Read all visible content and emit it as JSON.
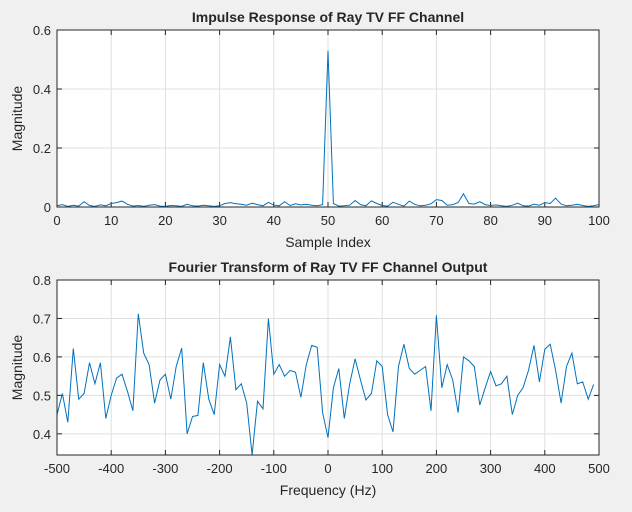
{
  "chart_data": [
    {
      "type": "line",
      "title": "Impulse Response of Ray TV FF Channel",
      "xlabel": "Sample Index",
      "ylabel": "Magnitude",
      "xlim": [
        0,
        100
      ],
      "ylim": [
        0,
        0.6
      ],
      "xticks": [
        "0",
        "10",
        "20",
        "30",
        "40",
        "50",
        "60",
        "70",
        "80",
        "90",
        "100"
      ],
      "yticks": [
        "0",
        "0.2",
        "0.4",
        "0.6"
      ],
      "grid": true,
      "color": "#0072bd",
      "series": [
        {
          "x": [
            0,
            1,
            2,
            3,
            4,
            5,
            6,
            7,
            8,
            9,
            10,
            11,
            12,
            13,
            14,
            15,
            16,
            17,
            18,
            19,
            20,
            21,
            22,
            23,
            24,
            25,
            26,
            27,
            28,
            29,
            30,
            31,
            32,
            33,
            34,
            35,
            36,
            37,
            38,
            39,
            40,
            41,
            42,
            43,
            44,
            45,
            46,
            47,
            48,
            49,
            50,
            51,
            52,
            53,
            54,
            55,
            56,
            57,
            58,
            59,
            60,
            61,
            62,
            63,
            64,
            65,
            66,
            67,
            68,
            69,
            70,
            71,
            72,
            73,
            74,
            75,
            76,
            77,
            78,
            79,
            80,
            81,
            82,
            83,
            84,
            85,
            86,
            87,
            88,
            89,
            90,
            91,
            92,
            93,
            94,
            95,
            96,
            97,
            98,
            99,
            100
          ],
          "y": [
            0.004,
            0.008,
            0.002,
            0.006,
            0.003,
            0.018,
            0.005,
            0.002,
            0.007,
            0.004,
            0.012,
            0.015,
            0.02,
            0.009,
            0.003,
            0.005,
            0.002,
            0.006,
            0.008,
            0.003,
            0.002,
            0.005,
            0.004,
            0.002,
            0.009,
            0.004,
            0.003,
            0.006,
            0.004,
            0.002,
            0.004,
            0.012,
            0.015,
            0.011,
            0.009,
            0.006,
            0.013,
            0.008,
            0.004,
            0.016,
            0.006,
            0.004,
            0.018,
            0.005,
            0.011,
            0.007,
            0.009,
            0.006,
            0.004,
            0.008,
            0.53,
            0.012,
            0.003,
            0.004,
            0.006,
            0.022,
            0.008,
            0.004,
            0.021,
            0.012,
            0.005,
            0.003,
            0.016,
            0.009,
            0.003,
            0.02,
            0.009,
            0.004,
            0.006,
            0.011,
            0.025,
            0.022,
            0.006,
            0.008,
            0.015,
            0.045,
            0.012,
            0.01,
            0.018,
            0.008,
            0.005,
            0.007,
            0.004,
            0.002,
            0.006,
            0.013,
            0.004,
            0.003,
            0.01,
            0.006,
            0.015,
            0.012,
            0.03,
            0.01,
            0.004,
            0.006,
            0.009,
            0.005,
            0.002,
            0.004,
            0.008
          ]
        }
      ]
    },
    {
      "type": "line",
      "title": "Fourier Transform of Ray TV FF Channel Output",
      "xlabel": "Frequency (Hz)",
      "ylabel": "Magnitude",
      "xlim": [
        -500,
        500
      ],
      "ylim": [
        0.345,
        0.8
      ],
      "xticks": [
        "-500",
        "-400",
        "-300",
        "-200",
        "-100",
        "0",
        "100",
        "200",
        "300",
        "400",
        "500"
      ],
      "yticks": [
        "0.4",
        "0.5",
        "0.6",
        "0.7",
        "0.8"
      ],
      "grid": true,
      "color": "#0072bd",
      "series": [
        {
          "x": [
            -500,
            -490,
            -480,
            -470,
            -460,
            -450,
            -440,
            -430,
            -420,
            -410,
            -400,
            -390,
            -380,
            -370,
            -360,
            -350,
            -340,
            -330,
            -320,
            -310,
            -300,
            -290,
            -280,
            -270,
            -260,
            -250,
            -240,
            -230,
            -220,
            -210,
            -200,
            -190,
            -180,
            -170,
            -160,
            -150,
            -140,
            -130,
            -120,
            -110,
            -100,
            -90,
            -80,
            -70,
            -60,
            -50,
            -40,
            -30,
            -20,
            -10,
            0,
            10,
            20,
            30,
            40,
            50,
            60,
            70,
            80,
            90,
            100,
            110,
            120,
            130,
            140,
            150,
            160,
            170,
            180,
            190,
            200,
            210,
            220,
            230,
            240,
            250,
            260,
            270,
            280,
            290,
            300,
            310,
            320,
            330,
            340,
            350,
            360,
            370,
            380,
            390,
            400,
            410,
            420,
            430,
            440,
            450,
            460,
            470,
            480,
            490
          ],
          "y": [
            0.45,
            0.505,
            0.43,
            0.622,
            0.49,
            0.505,
            0.585,
            0.53,
            0.585,
            0.44,
            0.5,
            0.545,
            0.555,
            0.51,
            0.46,
            0.712,
            0.61,
            0.58,
            0.48,
            0.54,
            0.555,
            0.49,
            0.575,
            0.623,
            0.4,
            0.445,
            0.448,
            0.585,
            0.49,
            0.45,
            0.58,
            0.55,
            0.652,
            0.515,
            0.53,
            0.48,
            0.345,
            0.485,
            0.465,
            0.7,
            0.555,
            0.58,
            0.55,
            0.565,
            0.56,
            0.495,
            0.58,
            0.63,
            0.625,
            0.455,
            0.39,
            0.52,
            0.57,
            0.44,
            0.53,
            0.595,
            0.54,
            0.488,
            0.505,
            0.59,
            0.575,
            0.45,
            0.405,
            0.575,
            0.633,
            0.57,
            0.555,
            0.565,
            0.575,
            0.46,
            0.708,
            0.52,
            0.58,
            0.54,
            0.455,
            0.6,
            0.59,
            0.575,
            0.475,
            0.52,
            0.562,
            0.525,
            0.53,
            0.55,
            0.45,
            0.5,
            0.52,
            0.565,
            0.63,
            0.535,
            0.62,
            0.633,
            0.565,
            0.48,
            0.575,
            0.61,
            0.53,
            0.535,
            0.49,
            0.528
          ]
        }
      ]
    }
  ]
}
